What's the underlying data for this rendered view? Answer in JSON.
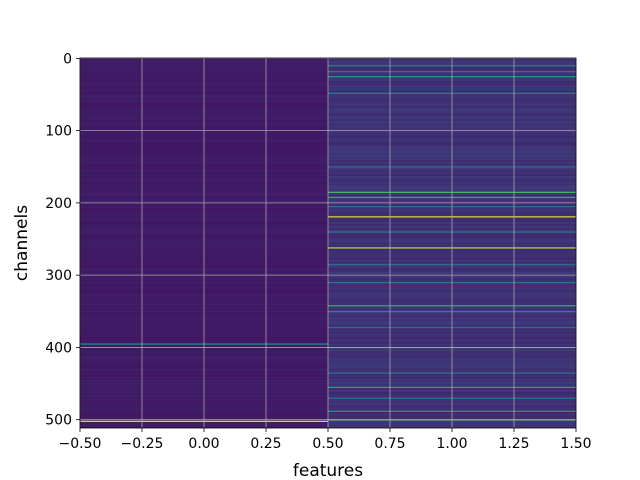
{
  "chart_data": {
    "type": "heatmap",
    "title": "",
    "xlabel": "features",
    "ylabel": "channels",
    "xlim": [
      -0.5,
      1.5
    ],
    "ylim": [
      511.5,
      -0.5
    ],
    "y_inverted": true,
    "colormap": "viridis",
    "grid": true,
    "x_ticks": [
      {
        "value": -0.5,
        "label": "−0.50"
      },
      {
        "value": -0.25,
        "label": "−0.25"
      },
      {
        "value": 0.0,
        "label": "0.00"
      },
      {
        "value": 0.25,
        "label": "0.25"
      },
      {
        "value": 0.5,
        "label": "0.50"
      },
      {
        "value": 0.75,
        "label": "0.75"
      },
      {
        "value": 1.0,
        "label": "1.00"
      },
      {
        "value": 1.25,
        "label": "1.25"
      },
      {
        "value": 1.5,
        "label": "1.50"
      }
    ],
    "y_ticks": [
      {
        "value": 0,
        "label": "0"
      },
      {
        "value": 100,
        "label": "100"
      },
      {
        "value": 200,
        "label": "200"
      },
      {
        "value": 300,
        "label": "300"
      },
      {
        "value": 400,
        "label": "400"
      },
      {
        "value": 500,
        "label": "500"
      }
    ],
    "n_channels": 512,
    "columns": [
      {
        "feature": 0,
        "background_level": 0.08,
        "highlight_rows": [
          {
            "channel": 395,
            "level": 0.5
          },
          {
            "channel": 502,
            "level": 0.95
          }
        ]
      },
      {
        "feature": 1,
        "background_level": 0.15,
        "highlight_rows": [
          {
            "channel": 10,
            "level": 0.45
          },
          {
            "channel": 18,
            "level": 0.4
          },
          {
            "channel": 25,
            "level": 0.55
          },
          {
            "channel": 48,
            "level": 0.45
          },
          {
            "channel": 150,
            "level": 0.35
          },
          {
            "channel": 185,
            "level": 0.7
          },
          {
            "channel": 192,
            "level": 0.6
          },
          {
            "channel": 205,
            "level": 0.4
          },
          {
            "channel": 219,
            "level": 0.95
          },
          {
            "channel": 240,
            "level": 0.4
          },
          {
            "channel": 262,
            "level": 0.9
          },
          {
            "channel": 285,
            "level": 0.35
          },
          {
            "channel": 310,
            "level": 0.4
          },
          {
            "channel": 342,
            "level": 0.6
          },
          {
            "channel": 350,
            "level": 0.45
          },
          {
            "channel": 372,
            "level": 0.35
          },
          {
            "channel": 400,
            "level": 0.35
          },
          {
            "channel": 435,
            "level": 0.4
          },
          {
            "channel": 455,
            "level": 0.55
          },
          {
            "channel": 470,
            "level": 0.4
          },
          {
            "channel": 488,
            "level": 0.55
          },
          {
            "channel": 500,
            "level": 0.7
          }
        ]
      }
    ]
  }
}
